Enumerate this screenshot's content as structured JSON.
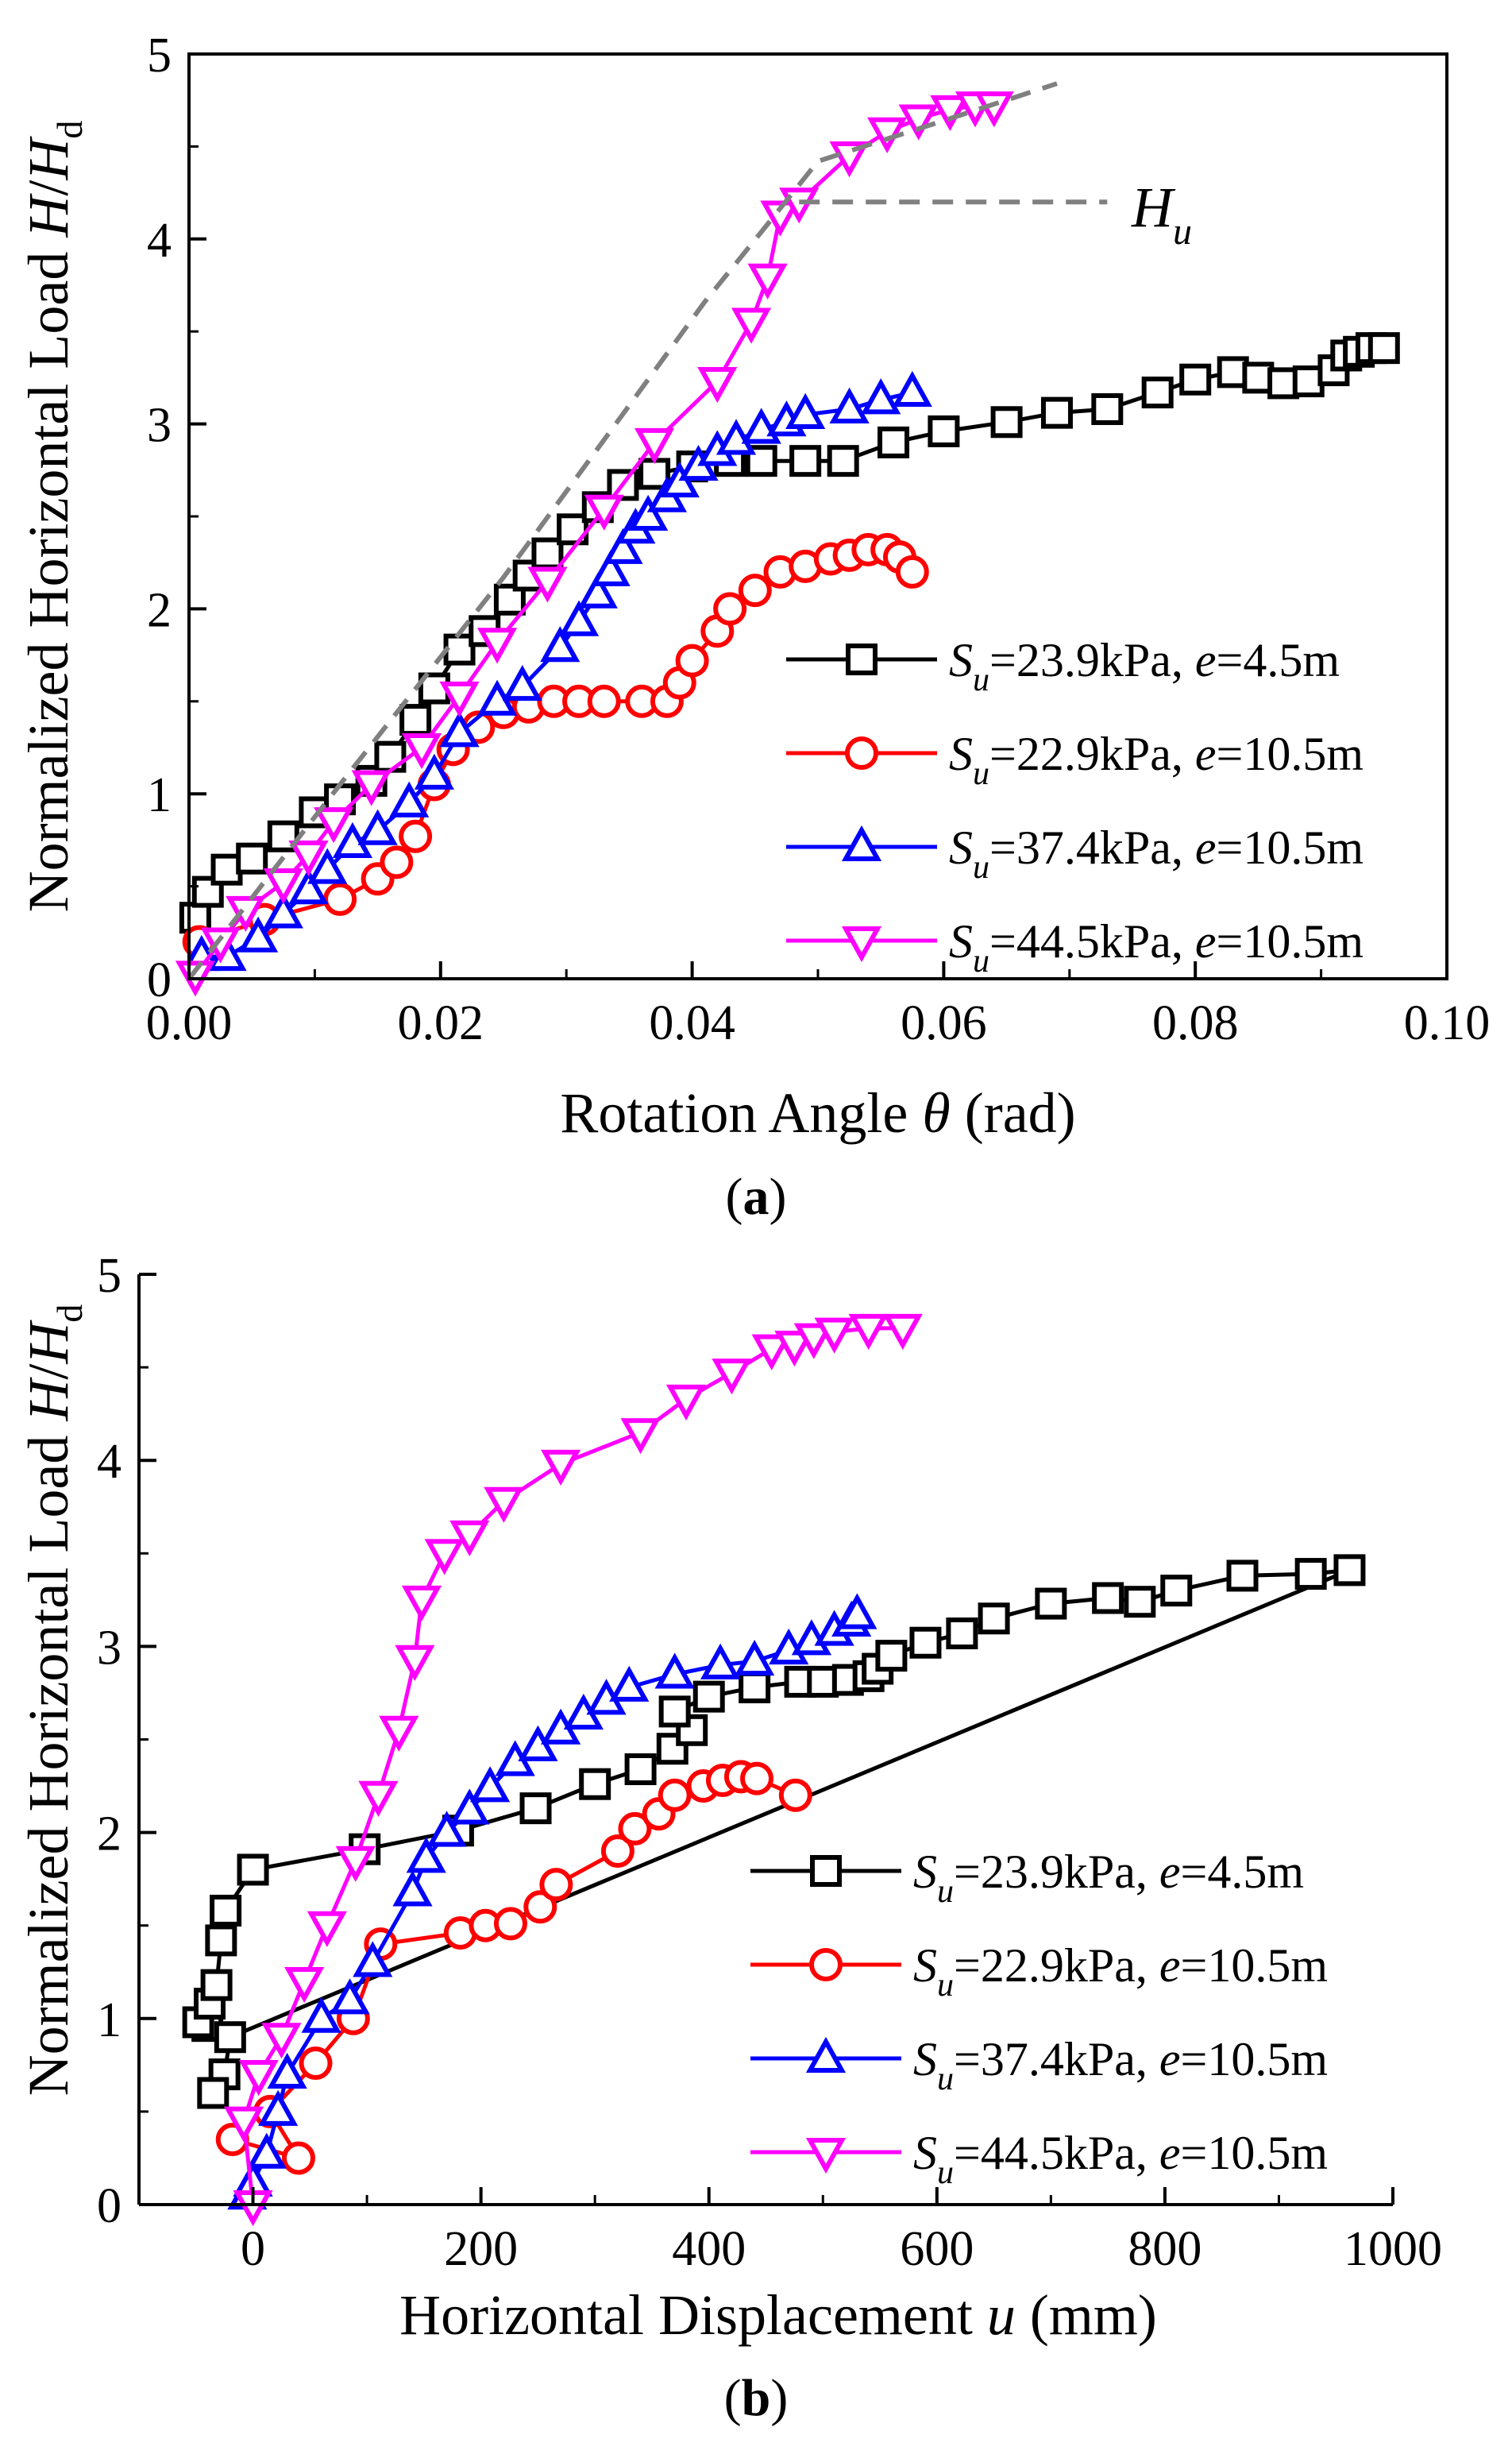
{
  "chart_data": [
    {
      "type": "line",
      "caption": "(a)",
      "xlabel": "Rotation Angle θ (rad)",
      "ylabel": "Normalized Horizontal Load H/Hd",
      "xlim": [
        0,
        0.1
      ],
      "ylim": [
        0,
        5
      ],
      "xticks": [
        "0.00",
        "0.02",
        "0.04",
        "0.06",
        "0.08",
        "0.10"
      ],
      "yticks": [
        "0",
        "1",
        "2",
        "3",
        "4",
        "5"
      ],
      "annotation": "Hu",
      "legend_position": "lower-right",
      "series": [
        {
          "name": "Su=23.9kPa, e=4.5m",
          "color": "#000000",
          "marker": "square",
          "points": [
            [
              0.0005,
              0.33
            ],
            [
              0.0015,
              0.47
            ],
            [
              0.003,
              0.59
            ],
            [
              0.005,
              0.65
            ],
            [
              0.0075,
              0.77
            ],
            [
              0.01,
              0.9
            ],
            [
              0.012,
              0.97
            ],
            [
              0.0145,
              1.07
            ],
            [
              0.016,
              1.2
            ],
            [
              0.018,
              1.4
            ],
            [
              0.0195,
              1.57
            ],
            [
              0.0215,
              1.78
            ],
            [
              0.0235,
              1.88
            ],
            [
              0.0255,
              2.05
            ],
            [
              0.027,
              2.18
            ],
            [
              0.0285,
              2.3
            ],
            [
              0.0305,
              2.43
            ],
            [
              0.0325,
              2.55
            ],
            [
              0.0345,
              2.67
            ],
            [
              0.037,
              2.73
            ],
            [
              0.04,
              2.77
            ],
            [
              0.043,
              2.8
            ],
            [
              0.0455,
              2.8
            ],
            [
              0.049,
              2.8
            ],
            [
              0.052,
              2.8
            ],
            [
              0.056,
              2.9
            ],
            [
              0.06,
              2.96
            ],
            [
              0.065,
              3.01
            ],
            [
              0.069,
              3.06
            ],
            [
              0.073,
              3.08
            ],
            [
              0.077,
              3.17
            ],
            [
              0.08,
              3.24
            ],
            [
              0.083,
              3.28
            ],
            [
              0.085,
              3.25
            ],
            [
              0.087,
              3.22
            ],
            [
              0.089,
              3.23
            ],
            [
              0.091,
              3.29
            ],
            [
              0.092,
              3.37
            ],
            [
              0.093,
              3.39
            ],
            [
              0.094,
              3.41
            ],
            [
              0.095,
              3.41
            ]
          ]
        },
        {
          "name": "Su=22.9kPa, e=10.5m",
          "color": "#ff0000",
          "marker": "circle",
          "points": [
            [
              0.0008,
              0.2
            ],
            [
              0.006,
              0.32
            ],
            [
              0.012,
              0.43
            ],
            [
              0.015,
              0.54
            ],
            [
              0.0165,
              0.63
            ],
            [
              0.018,
              0.77
            ],
            [
              0.0195,
              1.05
            ],
            [
              0.021,
              1.24
            ],
            [
              0.023,
              1.36
            ],
            [
              0.025,
              1.44
            ],
            [
              0.027,
              1.47
            ],
            [
              0.029,
              1.5
            ],
            [
              0.031,
              1.5
            ],
            [
              0.033,
              1.5
            ],
            [
              0.036,
              1.5
            ],
            [
              0.038,
              1.5
            ],
            [
              0.039,
              1.6
            ],
            [
              0.04,
              1.72
            ],
            [
              0.042,
              1.88
            ],
            [
              0.043,
              2.0
            ],
            [
              0.045,
              2.1
            ],
            [
              0.047,
              2.2
            ],
            [
              0.049,
              2.23
            ],
            [
              0.051,
              2.27
            ],
            [
              0.0525,
              2.29
            ],
            [
              0.054,
              2.32
            ],
            [
              0.0555,
              2.32
            ],
            [
              0.0565,
              2.28
            ],
            [
              0.0575,
              2.2
            ]
          ]
        },
        {
          "name": "Su=37.4kPa, e=10.5m",
          "color": "#0000ff",
          "marker": "triangle-up",
          "points": [
            [
              0.001,
              0.12
            ],
            [
              0.003,
              0.12
            ],
            [
              0.0055,
              0.22
            ],
            [
              0.0075,
              0.35
            ],
            [
              0.0095,
              0.48
            ],
            [
              0.011,
              0.59
            ],
            [
              0.013,
              0.73
            ],
            [
              0.015,
              0.8
            ],
            [
              0.0175,
              0.95
            ],
            [
              0.0195,
              1.1
            ],
            [
              0.0215,
              1.33
            ],
            [
              0.0245,
              1.5
            ],
            [
              0.0265,
              1.58
            ],
            [
              0.0295,
              1.79
            ],
            [
              0.031,
              1.93
            ],
            [
              0.0325,
              2.08
            ],
            [
              0.0335,
              2.2
            ],
            [
              0.0345,
              2.32
            ],
            [
              0.0355,
              2.43
            ],
            [
              0.0365,
              2.5
            ],
            [
              0.038,
              2.6
            ],
            [
              0.039,
              2.68
            ],
            [
              0.0405,
              2.77
            ],
            [
              0.042,
              2.85
            ],
            [
              0.0435,
              2.91
            ],
            [
              0.0455,
              2.97
            ],
            [
              0.0475,
              3.01
            ],
            [
              0.049,
              3.05
            ],
            [
              0.0525,
              3.08
            ],
            [
              0.055,
              3.13
            ],
            [
              0.0575,
              3.17
            ]
          ]
        },
        {
          "name": "Su=44.5kPa, e=10.5m",
          "color": "#ff00ff",
          "marker": "triangle-down",
          "points": [
            [
              0.0005,
              0.02
            ],
            [
              0.0025,
              0.2
            ],
            [
              0.0045,
              0.37
            ],
            [
              0.0075,
              0.52
            ],
            [
              0.0095,
              0.67
            ],
            [
              0.0115,
              0.85
            ],
            [
              0.0145,
              1.05
            ],
            [
              0.0185,
              1.25
            ],
            [
              0.0215,
              1.53
            ],
            [
              0.0245,
              1.82
            ],
            [
              0.0285,
              2.15
            ],
            [
              0.033,
              2.54
            ],
            [
              0.037,
              2.9
            ],
            [
              0.042,
              3.23
            ],
            [
              0.0447,
              3.55
            ],
            [
              0.046,
              3.79
            ],
            [
              0.047,
              4.13
            ],
            [
              0.0485,
              4.2
            ],
            [
              0.0525,
              4.45
            ],
            [
              0.0555,
              4.58
            ],
            [
              0.058,
              4.65
            ],
            [
              0.0605,
              4.7
            ],
            [
              0.0625,
              4.72
            ],
            [
              0.064,
              4.72
            ]
          ]
        },
        {
          "name": "",
          "color": "#808080",
          "marker": "none",
          "dashed": true,
          "points": [
            [
              0.0,
              0.0
            ],
            [
              0.012,
              1.05
            ],
            [
              0.025,
              2.17
            ],
            [
              0.035,
              3.1
            ],
            [
              0.041,
              3.66
            ],
            [
              0.046,
              4.08
            ],
            [
              0.05,
              4.42
            ],
            [
              0.06,
              4.64
            ],
            [
              0.069,
              4.84
            ]
          ]
        },
        {
          "name": "",
          "color": "#808080",
          "marker": "none",
          "dashed": true,
          "points": [
            [
              0.0485,
              4.2
            ],
            [
              0.073,
              4.2
            ]
          ]
        }
      ]
    },
    {
      "type": "line",
      "caption": "(b)",
      "xlabel": "Horizontal Displacement u (mm)",
      "ylabel": "Normalized Horizontal Load H/Hd",
      "xlim": [
        -100,
        1000
      ],
      "ylim": [
        0,
        5
      ],
      "xticks": [
        "0",
        "200",
        "400",
        "600",
        "800",
        "1000"
      ],
      "yticks": [
        "0",
        "1",
        "2",
        "3",
        "4",
        "5"
      ],
      "legend_position": "lower-right",
      "series": [
        {
          "name": "Su=23.9kPa, e=4.5m",
          "color": "#000000",
          "marker": "square",
          "points": [
            [
              -40,
              0.96
            ],
            [
              -48,
              0.98
            ],
            [
              -38,
              1.08
            ],
            [
              -32,
              1.18
            ],
            [
              -28,
              1.42
            ],
            [
              -24,
              1.58
            ],
            [
              0,
              1.8
            ],
            [
              98,
              1.91
            ],
            [
              180,
              2.01
            ],
            [
              248,
              2.13
            ],
            [
              300,
              2.26
            ],
            [
              340,
              2.34
            ],
            [
              368,
              2.45
            ],
            [
              385,
              2.55
            ],
            [
              370,
              2.65
            ],
            [
              400,
              2.73
            ],
            [
              440,
              2.78
            ],
            [
              480,
              2.81
            ],
            [
              500,
              2.81
            ],
            [
              522,
              2.82
            ],
            [
              540,
              2.84
            ],
            [
              548,
              2.88
            ],
            [
              560,
              2.95
            ],
            [
              590,
              3.02
            ],
            [
              622,
              3.07
            ],
            [
              650,
              3.15
            ],
            [
              700,
              3.23
            ],
            [
              750,
              3.26
            ],
            [
              778,
              3.24
            ],
            [
              810,
              3.3
            ],
            [
              868,
              3.38
            ],
            [
              928,
              3.39
            ],
            [
              962,
              3.41
            ],
            [
              -20,
              0.9
            ],
            [
              -25,
              0.7
            ],
            [
              -35,
              0.6
            ]
          ]
        },
        {
          "name": "Su=22.9kPa, e=10.5m",
          "color": "#ff0000",
          "marker": "circle",
          "points": [
            [
              -18,
              0.35
            ],
            [
              40,
              0.25
            ],
            [
              15,
              0.5
            ],
            [
              55,
              0.76
            ],
            [
              88,
              1.0
            ],
            [
              112,
              1.4
            ],
            [
              182,
              1.46
            ],
            [
              204,
              1.5
            ],
            [
              226,
              1.51
            ],
            [
              252,
              1.6
            ],
            [
              266,
              1.72
            ],
            [
              320,
              1.9
            ],
            [
              335,
              2.02
            ],
            [
              356,
              2.1
            ],
            [
              370,
              2.2
            ],
            [
              395,
              2.25
            ],
            [
              412,
              2.28
            ],
            [
              428,
              2.3
            ],
            [
              442,
              2.29
            ],
            [
              476,
              2.2
            ]
          ]
        },
        {
          "name": "Su=37.4kPa, e=10.5m",
          "color": "#0000ff",
          "marker": "triangle-up",
          "points": [
            [
              -5,
              0.05
            ],
            [
              0,
              0.12
            ],
            [
              12,
              0.27
            ],
            [
              22,
              0.5
            ],
            [
              30,
              0.7
            ],
            [
              60,
              1.0
            ],
            [
              85,
              1.1
            ],
            [
              105,
              1.3
            ],
            [
              140,
              1.68
            ],
            [
              152,
              1.86
            ],
            [
              170,
              2.0
            ],
            [
              190,
              2.12
            ],
            [
              208,
              2.24
            ],
            [
              230,
              2.38
            ],
            [
              250,
              2.46
            ],
            [
              270,
              2.55
            ],
            [
              290,
              2.63
            ],
            [
              310,
              2.71
            ],
            [
              330,
              2.78
            ],
            [
              370,
              2.85
            ],
            [
              410,
              2.9
            ],
            [
              440,
              2.92
            ],
            [
              470,
              2.98
            ],
            [
              490,
              3.03
            ],
            [
              510,
              3.08
            ],
            [
              525,
              3.13
            ],
            [
              530,
              3.17
            ]
          ]
        },
        {
          "name": "Su=44.5kPa, e=10.5m",
          "color": "#ff00ff",
          "marker": "triangle-down",
          "points": [
            [
              0,
              0.0
            ],
            [
              -8,
              0.45
            ],
            [
              5,
              0.7
            ],
            [
              25,
              0.9
            ],
            [
              45,
              1.2
            ],
            [
              65,
              1.5
            ],
            [
              90,
              1.85
            ],
            [
              110,
              2.2
            ],
            [
              128,
              2.55
            ],
            [
              142,
              2.93
            ],
            [
              148,
              3.25
            ],
            [
              168,
              3.5
            ],
            [
              190,
              3.6
            ],
            [
              220,
              3.78
            ],
            [
              270,
              3.98
            ],
            [
              340,
              4.15
            ],
            [
              380,
              4.33
            ],
            [
              420,
              4.47
            ],
            [
              455,
              4.6
            ],
            [
              475,
              4.62
            ],
            [
              492,
              4.66
            ],
            [
              510,
              4.69
            ],
            [
              540,
              4.71
            ],
            [
              570,
              4.71
            ]
          ]
        }
      ]
    }
  ]
}
